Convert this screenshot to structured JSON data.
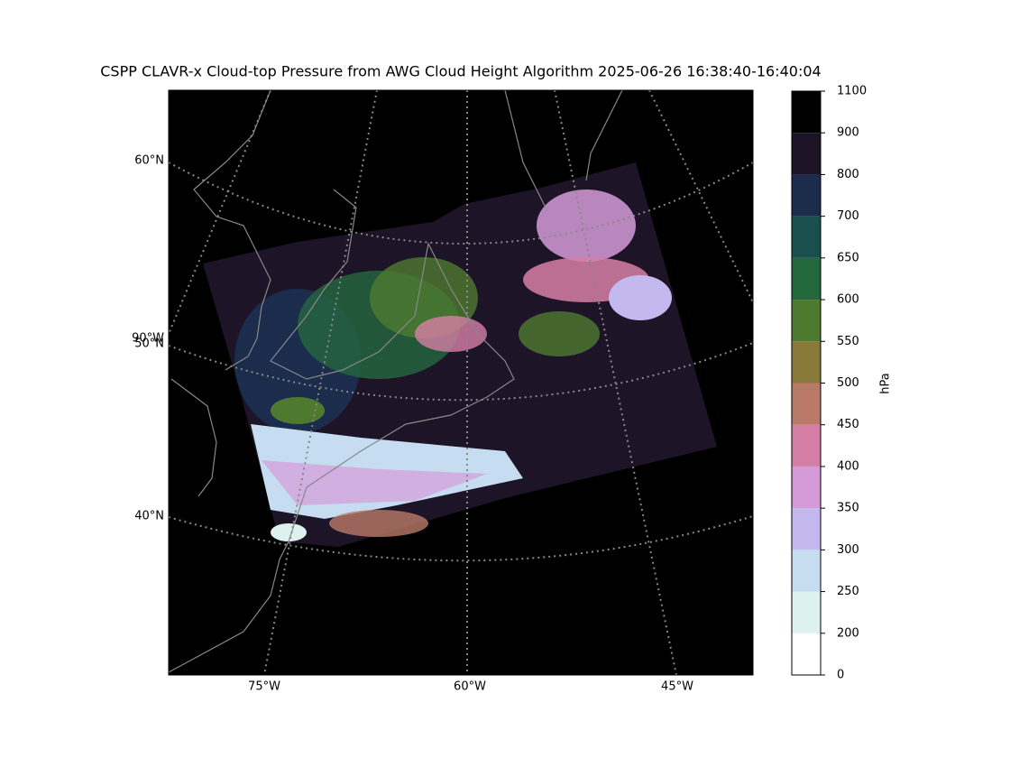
{
  "title": "CSPP CLAVR-x Cloud-top Pressure from AWG Cloud Height Algorithm 2025-06-26 16:38:40-16:40:04",
  "map": {
    "lat_labels": [
      "60°N",
      "50°N",
      "40°N"
    ],
    "lon_label_left": "90°W",
    "lon_labels_bottom": [
      "75°W",
      "60°W",
      "45°W"
    ]
  },
  "colorbar": {
    "label": "hPa",
    "ticks": [
      0,
      200,
      250,
      300,
      350,
      400,
      450,
      500,
      550,
      600,
      650,
      700,
      800,
      900,
      1100
    ],
    "colors": [
      "#ffffff",
      "#ddf2ee",
      "#c6dcf0",
      "#c4b9ee",
      "#d59bd8",
      "#d67fa6",
      "#b97a68",
      "#8a7a3a",
      "#4e7a30",
      "#24683e",
      "#1a4f50",
      "#1c2c4c",
      "#1e1428",
      "#000000"
    ]
  }
}
